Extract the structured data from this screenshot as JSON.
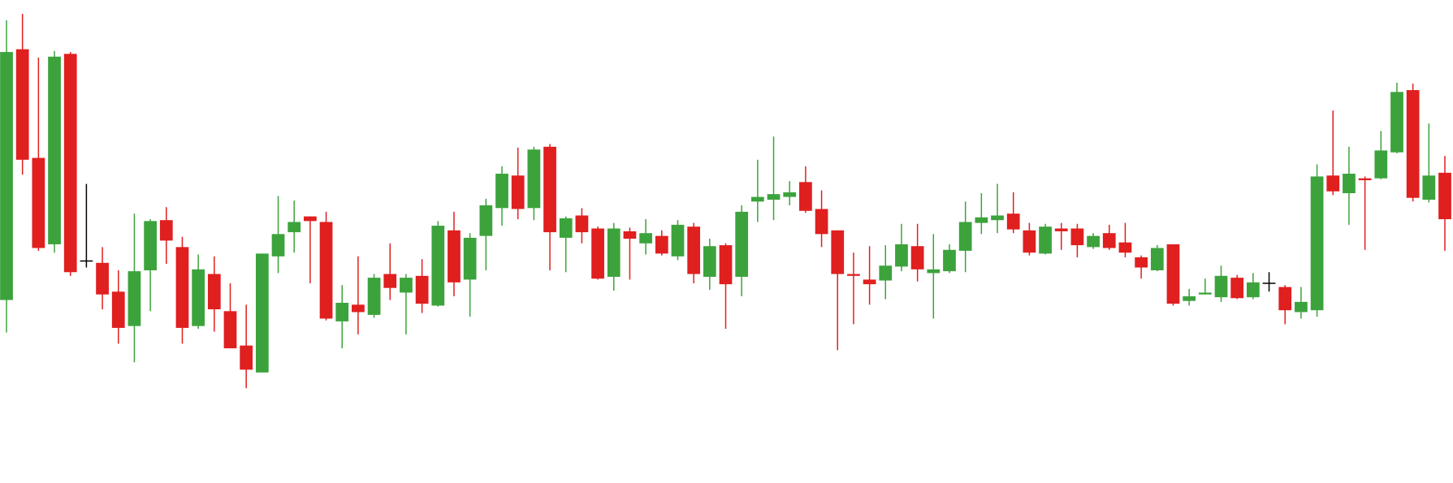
{
  "chart_data": {
    "type": "candlestick",
    "up_color": "#3ca33c",
    "down_color": "#e01f1f",
    "doji_color": "#000000",
    "ylim": [
      0,
      520
    ],
    "open": [
      197,
      467,
      350,
      257,
      462,
      239,
      237,
      206,
      169,
      229,
      283,
      254,
      169,
      225,
      185,
      148,
      119,
      244,
      270,
      287,
      281,
      174,
      192,
      181,
      225,
      205,
      223,
      191,
      272,
      219,
      266,
      296,
      331,
      296,
      362,
      264,
      288,
      274,
      222,
      271,
      258,
      266,
      244,
      276,
      222,
      256,
      222,
      303,
      305,
      308,
      324,
      295,
      272,
      225,
      219,
      218,
      233,
      255,
      226,
      228,
      250,
      280,
      283,
      290,
      272,
      247,
      274,
      274,
      254,
      269,
      259,
      243,
      229,
      257,
      196,
      203,
      200,
      221,
      200,
      215,
      211,
      184,
      186,
      331,
      312,
      328,
      328,
      356,
      423,
      305,
      334
    ],
    "high": [
      498,
      505,
      458,
      465,
      464,
      322,
      254,
      229,
      290,
      284,
      297,
      265,
      246,
      244,
      215,
      192,
      247,
      309,
      304,
      287,
      292,
      213,
      244,
      225,
      258,
      225,
      241,
      282,
      292,
      269,
      306,
      341,
      361,
      362,
      365,
      287,
      296,
      276,
      280,
      275,
      284,
      272,
      283,
      280,
      263,
      258,
      299,
      348,
      373,
      325,
      341,
      315,
      272,
      248,
      255,
      256,
      279,
      279,
      268,
      257,
      303,
      312,
      322,
      313,
      280,
      279,
      280,
      279,
      269,
      278,
      280,
      245,
      256,
      257,
      209,
      220,
      234,
      224,
      226,
      227,
      213,
      211,
      343,
      401,
      362,
      330,
      379,
      431,
      430,
      387,
      352
    ],
    "low": [
      162,
      332,
      250,
      248,
      223,
      232,
      187,
      150,
      130,
      185,
      236,
      150,
      166,
      163,
      145,
      102,
      119,
      226,
      248,
      215,
      175,
      145,
      160,
      178,
      197,
      160,
      183,
      190,
      201,
      179,
      229,
      277,
      284,
      283,
      229,
      227,
      258,
      219,
      207,
      219,
      246,
      245,
      240,
      215,
      208,
      166,
      201,
      281,
      283,
      299,
      291,
      254,
      143,
      171,
      192,
      198,
      228,
      217,
      177,
      226,
      227,
      268,
      269,
      269,
      245,
      246,
      251,
      243,
      252,
      251,
      243,
      220,
      228,
      191,
      191,
      203,
      195,
      198,
      198,
      206,
      171,
      177,
      179,
      310,
      278,
      251,
      327,
      355,
      303,
      302,
      250
    ],
    "close": [
      464,
      348,
      253,
      459,
      227,
      239,
      203,
      167,
      228,
      282,
      261,
      167,
      230,
      187,
      145,
      122,
      247,
      268,
      281,
      282,
      177,
      194,
      184,
      221,
      210,
      221,
      193,
      277,
      216,
      264,
      299,
      333,
      295,
      359,
      270,
      285,
      270,
      220,
      274,
      263,
      269,
      247,
      278,
      225,
      255,
      214,
      292,
      308,
      311,
      313,
      293,
      268,
      225,
      223,
      214,
      234,
      257,
      230,
      230,
      251,
      281,
      286,
      288,
      273,
      248,
      276,
      271,
      256,
      266,
      253,
      248,
      232,
      253,
      193,
      201,
      205,
      223,
      199,
      216,
      215,
      186,
      195,
      330,
      314,
      333,
      326,
      358,
      421,
      307,
      331,
      284
    ]
  }
}
